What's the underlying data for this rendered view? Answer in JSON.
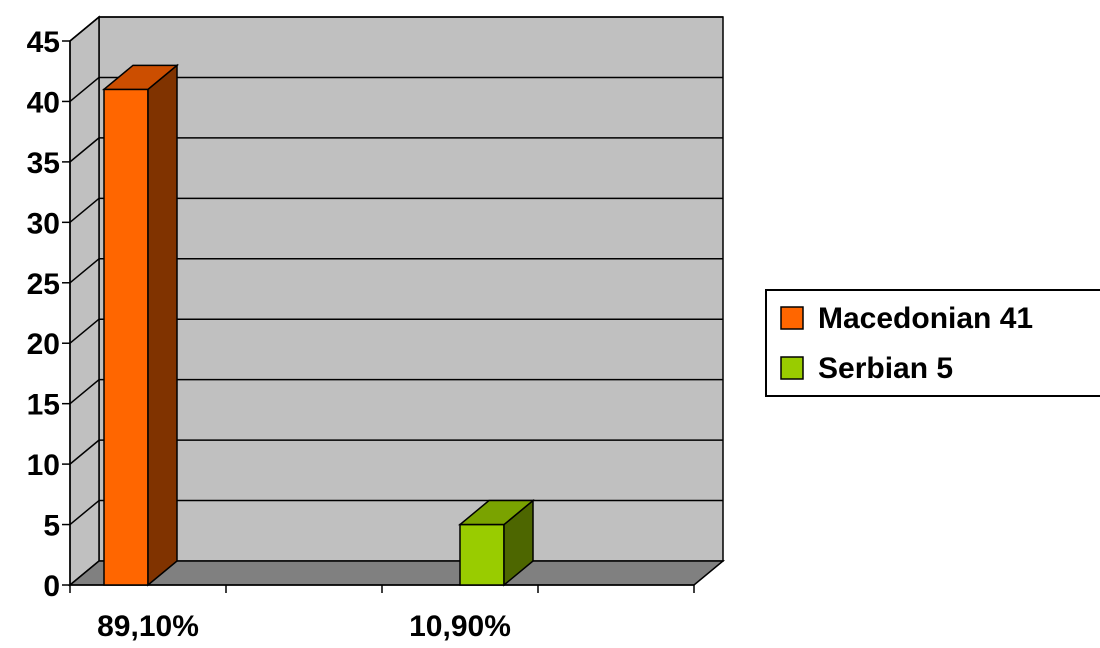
{
  "chart_data": {
    "type": "bar",
    "categories": [
      "89,10%",
      "10,90%"
    ],
    "series": [
      {
        "name": "Macedonian 41",
        "values": [
          41,
          null
        ],
        "color": "#ff6600",
        "side_color": "#803300",
        "top_color": "#cc4e00"
      },
      {
        "name": "Serbian 5",
        "values": [
          null,
          5
        ],
        "color": "#99cc00",
        "side_color": "#4d6600",
        "top_color": "#7aa300"
      }
    ],
    "ylim": [
      0,
      45
    ],
    "yticks": [
      0,
      5,
      10,
      15,
      20,
      25,
      30,
      35,
      40,
      45
    ],
    "grid": true,
    "legend_position": "right",
    "plot_wall_color": "#c0c0c0",
    "floor_color": "#808080",
    "three_d": true
  }
}
